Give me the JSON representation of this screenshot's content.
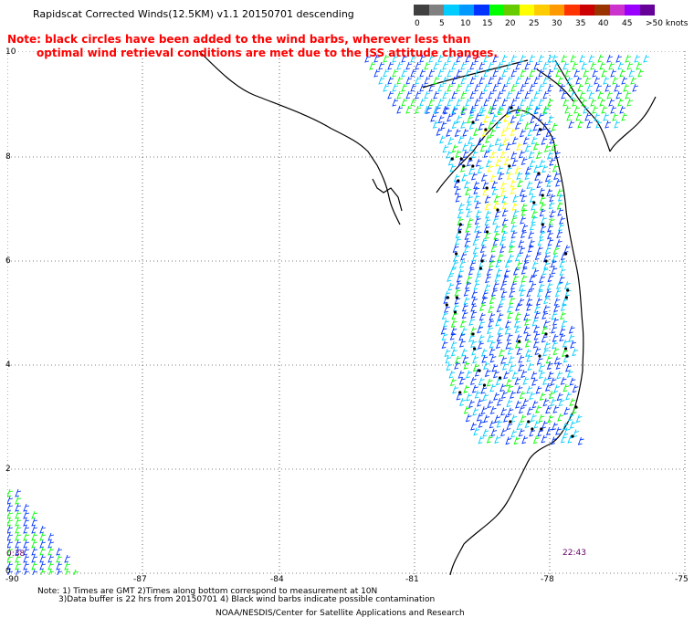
{
  "header": {
    "title": "Rapidscat Corrected Winds(12.5KM) v1.1 20150701 descending",
    "note_line1": "Note: black circles have been added to the wind barbs, wherever less than",
    "note_line2": "optimal wind retrieval conditions are met due to the ISS attitude changes."
  },
  "colorbar": {
    "units": "knots",
    "labels": [
      "0",
      "5",
      "10",
      "15",
      "20",
      "25",
      "30",
      "35",
      "40",
      "45",
      ">50 knots"
    ],
    "colors": [
      "#404040",
      "#808080",
      "#00ccff",
      "#0099ff",
      "#0033ff",
      "#00ff00",
      "#66cc00",
      "#ffff00",
      "#ffcc00",
      "#ff9900",
      "#ff3300",
      "#cc0000",
      "#993300",
      "#cc33cc",
      "#9900ff",
      "#660099"
    ]
  },
  "map": {
    "lat_labels": [
      "10",
      "8",
      "6",
      "4",
      "2",
      "0"
    ],
    "lon_labels": [
      "-90",
      "-87",
      "-84",
      "-81",
      "-78",
      "-75"
    ],
    "time_labels": [
      "0:38",
      "22:43"
    ],
    "coastline_color": "#000000",
    "grid_color": "#000000",
    "barb_colors": {
      "low": "#00ccff",
      "mid": "#0033ff",
      "high": "#00ff00",
      "highest": "#ffff00"
    }
  },
  "footer": {
    "note1": "Note: 1) Times are GMT 2)Times along bottom correspond to measurement at 10N",
    "note2": "3)Data buffer is 22 hrs from 20150701 4) Black wind barbs indicate possible contamination",
    "credit": "NOAA/NESDIS/Center for Satellite Applications and Research"
  }
}
